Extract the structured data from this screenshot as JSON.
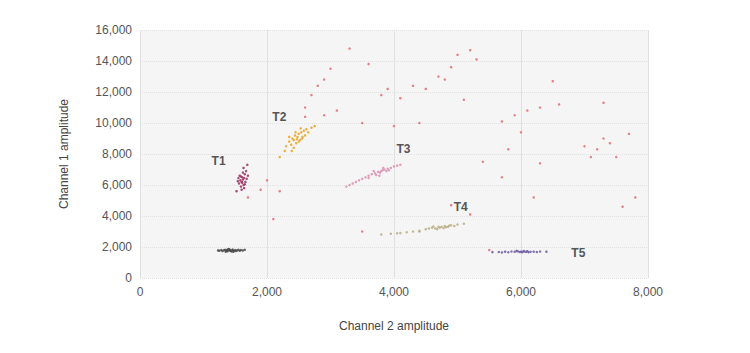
{
  "chart_data": {
    "type": "scatter",
    "x_label": "Channel 2 amplitude",
    "y_label": "Channel 1 amplitude",
    "xlim": [
      0,
      8000
    ],
    "ylim": [
      0,
      16000
    ],
    "xticks": [
      0,
      {
        "value": 2000,
        "label": "2,000"
      },
      {
        "value": 4000,
        "label": "4,000"
      },
      {
        "value": 6000,
        "label": "6,000"
      },
      {
        "value": 8000,
        "label": "8,000"
      }
    ],
    "yticks": [
      0,
      {
        "value": 2000,
        "label": "2,000"
      },
      {
        "value": 4000,
        "label": "4,000"
      },
      {
        "value": 6000,
        "label": "6,000"
      },
      {
        "value": 8000,
        "label": "8,000"
      },
      {
        "value": 10000,
        "label": "10,000"
      },
      {
        "value": 12000,
        "label": "12,000"
      },
      {
        "value": 14000,
        "label": "14,000"
      },
      {
        "value": 16000,
        "label": "16,000"
      }
    ],
    "grid": true,
    "series": [
      {
        "color": "#e26b73",
        "values": [
          [
            2600,
            11000
          ],
          [
            2700,
            11800
          ],
          [
            2800,
            12400
          ],
          [
            2900,
            12800
          ],
          [
            3000,
            13500
          ],
          [
            3300,
            14800
          ],
          [
            3600,
            13800
          ],
          [
            3800,
            11800
          ],
          [
            3900,
            12200
          ],
          [
            4100,
            11600
          ],
          [
            4300,
            12400
          ],
          [
            4500,
            12200
          ],
          [
            4700,
            13000
          ],
          [
            4800,
            12800
          ],
          [
            4900,
            13600
          ],
          [
            5000,
            14400
          ],
          [
            5200,
            14700
          ],
          [
            5300,
            14100
          ],
          [
            2900,
            10500
          ],
          [
            3100,
            10800
          ],
          [
            4000,
            9800
          ],
          [
            4400,
            10000
          ],
          [
            5100,
            11500
          ],
          [
            5700,
            10100
          ],
          [
            5900,
            10500
          ],
          [
            6100,
            10800
          ],
          [
            6300,
            11000
          ],
          [
            6500,
            12700
          ],
          [
            6600,
            11200
          ],
          [
            7000,
            8500
          ],
          [
            7200,
            8300
          ],
          [
            7300,
            9000
          ],
          [
            7400,
            8700
          ],
          [
            7500,
            7800
          ],
          [
            7100,
            7800
          ],
          [
            6000,
            9400
          ],
          [
            6300,
            7400
          ],
          [
            5700,
            6500
          ],
          [
            5400,
            7500
          ],
          [
            5800,
            8300
          ],
          [
            7300,
            11300
          ],
          [
            7700,
            9300
          ],
          [
            7800,
            5200
          ],
          [
            7600,
            4600
          ],
          [
            3500,
            10000
          ],
          [
            5200,
            4100
          ],
          [
            4900,
            4700
          ],
          [
            6200,
            5200
          ],
          [
            2000,
            6300
          ],
          [
            2200,
            5600
          ],
          [
            1900,
            5700
          ],
          [
            2100,
            3800
          ],
          [
            3500,
            3000
          ],
          [
            5500,
            1800
          ],
          [
            1700,
            5200
          ],
          [
            2600,
            10400
          ]
        ]
      },
      {
        "color": "#4a4a4a",
        "values": [
          [
            1250,
            1760
          ],
          [
            1280,
            1800
          ],
          [
            1300,
            1740
          ],
          [
            1320,
            1790
          ],
          [
            1340,
            1820
          ],
          [
            1360,
            1760
          ],
          [
            1380,
            1730
          ],
          [
            1400,
            1800
          ],
          [
            1410,
            1850
          ],
          [
            1420,
            1770
          ],
          [
            1440,
            1710
          ],
          [
            1450,
            1790
          ],
          [
            1460,
            1830
          ],
          [
            1480,
            1760
          ],
          [
            1500,
            1800
          ],
          [
            1510,
            1740
          ],
          [
            1530,
            1780
          ],
          [
            1550,
            1820
          ],
          [
            1570,
            1760
          ],
          [
            1590,
            1800
          ],
          [
            1620,
            1780
          ],
          [
            1350,
            1700
          ],
          [
            1390,
            1870
          ],
          [
            1470,
            1690
          ],
          [
            1230,
            1780
          ],
          [
            1650,
            1820
          ],
          [
            1430,
            1760
          ],
          [
            1370,
            1810
          ]
        ]
      },
      {
        "name": "T1",
        "color": "#9b2d5e",
        "values": [
          [
            1560,
            6100
          ],
          [
            1580,
            6300
          ],
          [
            1600,
            6200
          ],
          [
            1610,
            6500
          ],
          [
            1620,
            6350
          ],
          [
            1630,
            6000
          ],
          [
            1640,
            6450
          ],
          [
            1650,
            6700
          ],
          [
            1590,
            5900
          ],
          [
            1570,
            6600
          ],
          [
            1660,
            6200
          ],
          [
            1680,
            6400
          ],
          [
            1620,
            6800
          ],
          [
            1600,
            5700
          ],
          [
            1540,
            6250
          ],
          [
            1700,
            6600
          ],
          [
            1630,
            7100
          ],
          [
            1550,
            6450
          ],
          [
            1610,
            6150
          ],
          [
            1640,
            5800
          ],
          [
            1590,
            6550
          ],
          [
            1670,
            6900
          ],
          [
            1520,
            5600
          ],
          [
            1690,
            7300
          ],
          [
            1650,
            6050
          ]
        ]
      },
      {
        "name": "T2",
        "color": "#e8a21d",
        "values": [
          [
            2300,
            8500
          ],
          [
            2350,
            8800
          ],
          [
            2380,
            8600
          ],
          [
            2400,
            9000
          ],
          [
            2420,
            8900
          ],
          [
            2440,
            9200
          ],
          [
            2460,
            8700
          ],
          [
            2480,
            9100
          ],
          [
            2500,
            9300
          ],
          [
            2520,
            8900
          ],
          [
            2540,
            9400
          ],
          [
            2560,
            9100
          ],
          [
            2580,
            9500
          ],
          [
            2600,
            9200
          ],
          [
            2620,
            9600
          ],
          [
            2450,
            9400
          ],
          [
            2500,
            8800
          ],
          [
            2550,
            9000
          ],
          [
            2650,
            9400
          ],
          [
            2700,
            9700
          ],
          [
            2350,
            9100
          ],
          [
            2420,
            8400
          ],
          [
            2280,
            8200
          ],
          [
            2750,
            9800
          ],
          [
            2530,
            9650
          ],
          [
            2470,
            8950
          ],
          [
            2390,
            8200
          ],
          [
            2200,
            7800
          ]
        ]
      },
      {
        "name": "T3",
        "color": "#d98fb0",
        "values": [
          [
            3250,
            5900
          ],
          [
            3350,
            6100
          ],
          [
            3450,
            6300
          ],
          [
            3500,
            6400
          ],
          [
            3550,
            6500
          ],
          [
            3600,
            6600
          ],
          [
            3650,
            6700
          ],
          [
            3700,
            6750
          ],
          [
            3720,
            6650
          ],
          [
            3750,
            6850
          ],
          [
            3780,
            6800
          ],
          [
            3800,
            6900
          ],
          [
            3820,
            6950
          ],
          [
            3850,
            7000
          ],
          [
            3880,
            6900
          ],
          [
            3900,
            7050
          ],
          [
            3950,
            7100
          ],
          [
            4000,
            7200
          ],
          [
            4050,
            7250
          ],
          [
            3680,
            6900
          ],
          [
            3770,
            6600
          ],
          [
            3830,
            7100
          ],
          [
            3600,
            6450
          ],
          [
            3400,
            6200
          ],
          [
            3300,
            6000
          ],
          [
            3920,
            6950
          ],
          [
            4100,
            7300
          ]
        ]
      },
      {
        "name": "T4",
        "color": "#b9ad80",
        "values": [
          [
            3800,
            2800
          ],
          [
            3950,
            2850
          ],
          [
            4100,
            2900
          ],
          [
            4200,
            2950
          ],
          [
            4300,
            3000
          ],
          [
            4400,
            3050
          ],
          [
            4500,
            3150
          ],
          [
            4550,
            3200
          ],
          [
            4600,
            3250
          ],
          [
            4650,
            3200
          ],
          [
            4700,
            3300
          ],
          [
            4720,
            3250
          ],
          [
            4750,
            3300
          ],
          [
            4780,
            3220
          ],
          [
            4800,
            3350
          ],
          [
            4850,
            3300
          ],
          [
            4900,
            3400
          ],
          [
            4950,
            3350
          ],
          [
            5000,
            3450
          ],
          [
            5100,
            3500
          ],
          [
            4680,
            3150
          ],
          [
            4820,
            3280
          ],
          [
            4620,
            3320
          ],
          [
            4870,
            3380
          ],
          [
            4050,
            2880
          ],
          [
            4400,
            3000
          ]
        ]
      },
      {
        "name": "T5",
        "color": "#6b5b9e",
        "values": [
          [
            5650,
            1680
          ],
          [
            5750,
            1700
          ],
          [
            5800,
            1660
          ],
          [
            5850,
            1710
          ],
          [
            5900,
            1690
          ],
          [
            5950,
            1720
          ],
          [
            5980,
            1680
          ],
          [
            6000,
            1700
          ],
          [
            6020,
            1660
          ],
          [
            6050,
            1710
          ],
          [
            6080,
            1690
          ],
          [
            6100,
            1730
          ],
          [
            6150,
            1690
          ],
          [
            6200,
            1700
          ],
          [
            6250,
            1680
          ],
          [
            6300,
            1710
          ],
          [
            5700,
            1650
          ],
          [
            5930,
            1750
          ],
          [
            6040,
            1740
          ],
          [
            6120,
            1660
          ],
          [
            6400,
            1700
          ],
          [
            5550,
            1670
          ]
        ]
      }
    ]
  }
}
